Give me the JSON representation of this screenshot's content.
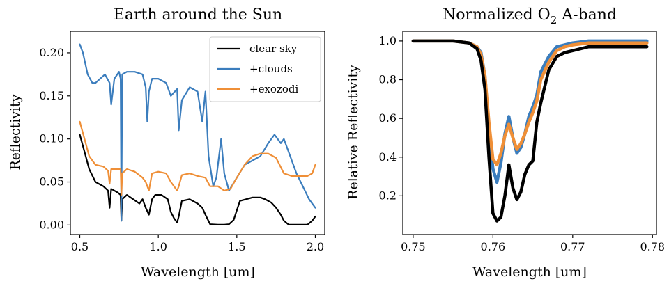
{
  "chart_data": [
    {
      "type": "line",
      "title": "Earth around the Sun",
      "xlabel": "Wavelength [um]",
      "ylabel": "Reflectivity",
      "xlim": [
        0.44,
        2.06
      ],
      "ylim": [
        -0.011,
        0.225
      ],
      "xticks": [
        0.5,
        1.0,
        1.5,
        2.0
      ],
      "xtick_labels": [
        "0.5",
        "1.0",
        "1.5",
        "2.0"
      ],
      "yticks": [
        0.0,
        0.05,
        0.1,
        0.15,
        0.2
      ],
      "ytick_labels": [
        "0.00",
        "0.05",
        "0.10",
        "0.15",
        "0.20"
      ],
      "legend_position": "top-right",
      "series": [
        {
          "name": "clear sky",
          "color": "#000000",
          "x": [
            0.5,
            0.53,
            0.56,
            0.6,
            0.65,
            0.68,
            0.69,
            0.7,
            0.72,
            0.74,
            0.76,
            0.765,
            0.77,
            0.8,
            0.84,
            0.88,
            0.9,
            0.92,
            0.94,
            0.96,
            0.98,
            1.02,
            1.06,
            1.08,
            1.1,
            1.12,
            1.13,
            1.15,
            1.2,
            1.25,
            1.28,
            1.3,
            1.33,
            1.38,
            1.42,
            1.45,
            1.48,
            1.52,
            1.6,
            1.65,
            1.68,
            1.72,
            1.75,
            1.78,
            1.8,
            1.83,
            1.9,
            1.95,
            1.98,
            2.0
          ],
          "y": [
            0.105,
            0.085,
            0.065,
            0.05,
            0.045,
            0.04,
            0.02,
            0.042,
            0.04,
            0.038,
            0.035,
            0.005,
            0.03,
            0.035,
            0.03,
            0.025,
            0.03,
            0.02,
            0.012,
            0.03,
            0.035,
            0.035,
            0.03,
            0.015,
            0.008,
            0.003,
            0.01,
            0.028,
            0.03,
            0.025,
            0.02,
            0.012,
            0.001,
            0.0005,
            0.0005,
            0.001,
            0.006,
            0.028,
            0.032,
            0.032,
            0.03,
            0.026,
            0.02,
            0.012,
            0.005,
            0.0005,
            0.0005,
            0.0005,
            0.005,
            0.01
          ]
        },
        {
          "name": "+clouds",
          "color": "#3b7dbd",
          "x": [
            0.5,
            0.52,
            0.55,
            0.58,
            0.6,
            0.63,
            0.66,
            0.69,
            0.7,
            0.72,
            0.75,
            0.76,
            0.765,
            0.77,
            0.8,
            0.85,
            0.9,
            0.92,
            0.93,
            0.94,
            0.96,
            1.0,
            1.05,
            1.08,
            1.12,
            1.13,
            1.15,
            1.2,
            1.25,
            1.28,
            1.3,
            1.32,
            1.35,
            1.37,
            1.4,
            1.42,
            1.45,
            1.5,
            1.55,
            1.6,
            1.65,
            1.7,
            1.74,
            1.78,
            1.8,
            1.84,
            1.88,
            1.92,
            1.96,
            2.0
          ],
          "y": [
            0.21,
            0.2,
            0.175,
            0.165,
            0.165,
            0.17,
            0.175,
            0.165,
            0.14,
            0.17,
            0.178,
            0.17,
            0.005,
            0.175,
            0.178,
            0.178,
            0.175,
            0.16,
            0.12,
            0.155,
            0.17,
            0.17,
            0.165,
            0.15,
            0.158,
            0.11,
            0.145,
            0.16,
            0.155,
            0.12,
            0.155,
            0.08,
            0.045,
            0.055,
            0.1,
            0.06,
            0.04,
            0.055,
            0.07,
            0.075,
            0.08,
            0.095,
            0.105,
            0.095,
            0.1,
            0.08,
            0.06,
            0.045,
            0.03,
            0.02
          ]
        },
        {
          "name": "+exozodi",
          "color": "#ef8f37",
          "x": [
            0.5,
            0.53,
            0.56,
            0.6,
            0.65,
            0.68,
            0.69,
            0.7,
            0.72,
            0.76,
            0.765,
            0.77,
            0.8,
            0.85,
            0.9,
            0.92,
            0.94,
            0.96,
            1.0,
            1.05,
            1.08,
            1.12,
            1.13,
            1.15,
            1.2,
            1.25,
            1.3,
            1.33,
            1.38,
            1.42,
            1.46,
            1.5,
            1.55,
            1.6,
            1.65,
            1.7,
            1.75,
            1.8,
            1.85,
            1.9,
            1.95,
            1.98,
            2.0
          ],
          "y": [
            0.12,
            0.1,
            0.08,
            0.07,
            0.068,
            0.063,
            0.048,
            0.065,
            0.065,
            0.065,
            0.035,
            0.06,
            0.065,
            0.062,
            0.055,
            0.05,
            0.04,
            0.06,
            0.062,
            0.06,
            0.05,
            0.04,
            0.045,
            0.058,
            0.06,
            0.057,
            0.055,
            0.045,
            0.045,
            0.04,
            0.042,
            0.055,
            0.07,
            0.08,
            0.083,
            0.083,
            0.078,
            0.06,
            0.057,
            0.057,
            0.057,
            0.06,
            0.07
          ]
        }
      ]
    },
    {
      "type": "line",
      "title": "Normalized O",
      "title_subscript": "2",
      "title_suffix": " A-band",
      "xlabel": "Wavelength [um]",
      "ylabel": "Relative Reflectivity",
      "xlim": [
        0.7487,
        0.7805
      ],
      "ylim": [
        0.0,
        1.05
      ],
      "xticks": [
        0.75,
        0.76,
        0.77,
        0.78
      ],
      "xtick_labels": [
        "0.75",
        "0.76",
        "0.77",
        "0.78"
      ],
      "yticks": [
        0.2,
        0.4,
        0.6,
        0.8,
        1.0
      ],
      "ytick_labels": [
        "0.2",
        "0.4",
        "0.6",
        "0.8",
        "1.0"
      ],
      "series": [
        {
          "color": "#3b7dbd",
          "x": [
            0.75,
            0.755,
            0.757,
            0.758,
            0.7585,
            0.759,
            0.7595,
            0.76,
            0.7605,
            0.761,
            0.7615,
            0.762,
            0.7625,
            0.763,
            0.7635,
            0.764,
            0.7645,
            0.765,
            0.7655,
            0.766,
            0.767,
            0.768,
            0.769,
            0.77,
            0.772,
            0.775,
            0.7793
          ],
          "y": [
            1.0,
            1.0,
            0.99,
            0.97,
            0.94,
            0.82,
            0.55,
            0.34,
            0.27,
            0.37,
            0.52,
            0.61,
            0.5,
            0.42,
            0.45,
            0.52,
            0.61,
            0.66,
            0.72,
            0.84,
            0.92,
            0.97,
            0.98,
            0.99,
            1.0,
            1.0,
            1.0
          ]
        },
        {
          "color": "#ef8f37",
          "x": [
            0.75,
            0.755,
            0.757,
            0.758,
            0.7585,
            0.759,
            0.7595,
            0.76,
            0.7605,
            0.761,
            0.7615,
            0.762,
            0.7625,
            0.763,
            0.7635,
            0.764,
            0.7645,
            0.765,
            0.7655,
            0.766,
            0.767,
            0.768,
            0.769,
            0.77,
            0.772,
            0.775,
            0.7793
          ],
          "y": [
            1.0,
            1.0,
            0.99,
            0.97,
            0.93,
            0.82,
            0.58,
            0.39,
            0.36,
            0.42,
            0.51,
            0.57,
            0.5,
            0.44,
            0.47,
            0.52,
            0.58,
            0.63,
            0.69,
            0.8,
            0.89,
            0.95,
            0.97,
            0.98,
            0.99,
            0.99,
            0.99
          ]
        },
        {
          "color": "#000000",
          "x": [
            0.75,
            0.755,
            0.757,
            0.758,
            0.7585,
            0.759,
            0.7595,
            0.76,
            0.7605,
            0.761,
            0.7615,
            0.762,
            0.7625,
            0.763,
            0.7635,
            0.764,
            0.7645,
            0.765,
            0.7655,
            0.766,
            0.767,
            0.768,
            0.769,
            0.77,
            0.772,
            0.775,
            0.7793
          ],
          "y": [
            1.0,
            1.0,
            0.99,
            0.96,
            0.9,
            0.75,
            0.4,
            0.11,
            0.07,
            0.09,
            0.2,
            0.36,
            0.24,
            0.18,
            0.22,
            0.31,
            0.36,
            0.38,
            0.58,
            0.68,
            0.85,
            0.92,
            0.94,
            0.95,
            0.97,
            0.97,
            0.97
          ]
        }
      ]
    }
  ]
}
